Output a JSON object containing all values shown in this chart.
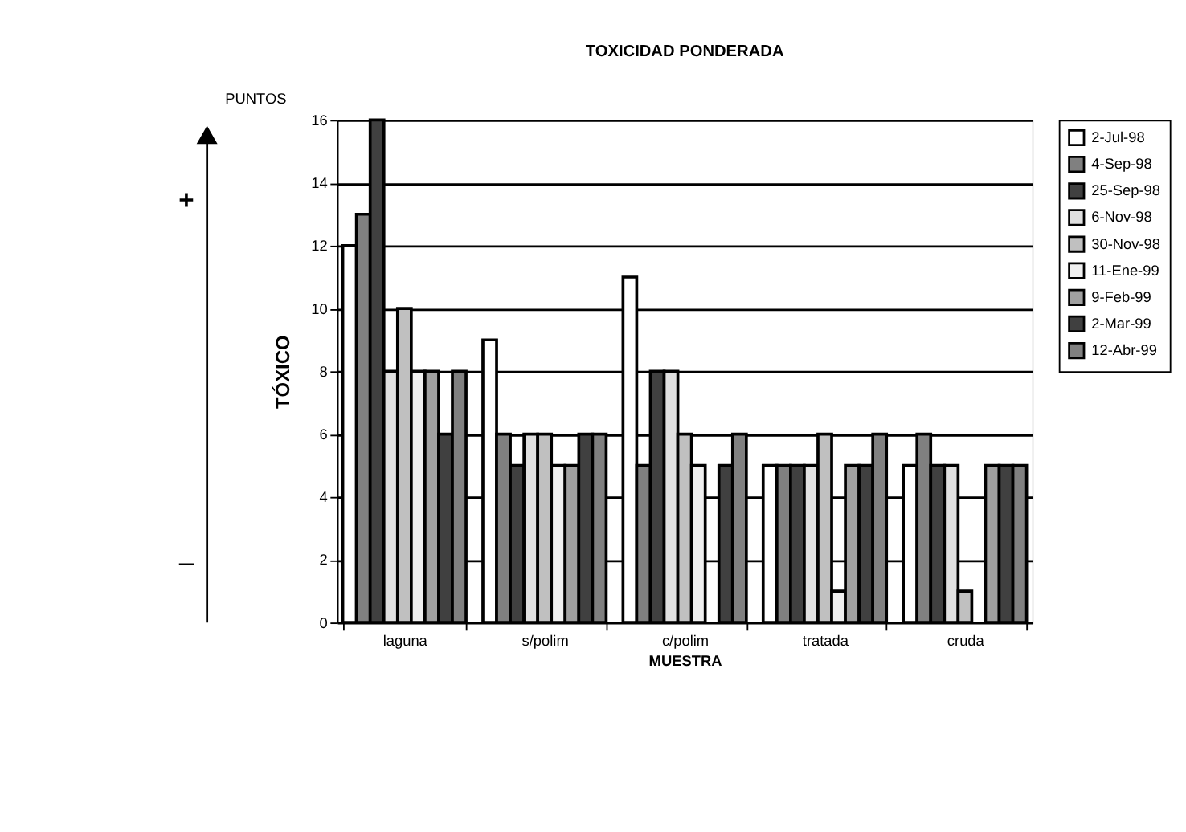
{
  "chart_data": {
    "type": "bar",
    "title": "TOXICIDAD PONDERADA",
    "xlabel": "MUESTRA",
    "ylabel": "TÓXICO",
    "annotations": [
      "PUNTOS",
      "+",
      "–"
    ],
    "categories": [
      "laguna",
      "s/polim",
      "c/polim",
      "tratada",
      "cruda"
    ],
    "series": [
      {
        "name": "2-Jul-98",
        "color": "#ffffff",
        "values": [
          12,
          9,
          11,
          5,
          5
        ]
      },
      {
        "name": "4-Sep-98",
        "color": "#808080",
        "values": [
          13,
          6,
          5,
          5,
          6
        ]
      },
      {
        "name": "25-Sep-98",
        "color": "#404040",
        "values": [
          16,
          5,
          8,
          5,
          5
        ]
      },
      {
        "name": "6-Nov-98",
        "color": "#e0e0e0",
        "values": [
          8,
          6,
          8,
          5,
          5
        ]
      },
      {
        "name": "30-Nov-98",
        "color": "#c0c0c0",
        "values": [
          10,
          6,
          6,
          6,
          1
        ]
      },
      {
        "name": "11-Ene-99",
        "color": "#f0f0f0",
        "values": [
          8,
          5,
          5,
          1,
          0
        ]
      },
      {
        "name": "9-Feb-99",
        "color": "#a0a0a0",
        "values": [
          8,
          5,
          0,
          5,
          5
        ]
      },
      {
        "name": "2-Mar-99",
        "color": "#404040",
        "values": [
          6,
          6,
          5,
          5,
          5
        ]
      },
      {
        "name": "12-Abr-99",
        "color": "#808080",
        "values": [
          8,
          6,
          6,
          6,
          5
        ]
      }
    ],
    "ylim": [
      0,
      16
    ],
    "yticks": [
      0,
      2,
      4,
      6,
      8,
      10,
      12,
      14,
      16
    ],
    "grid": "y",
    "legend": "right"
  }
}
